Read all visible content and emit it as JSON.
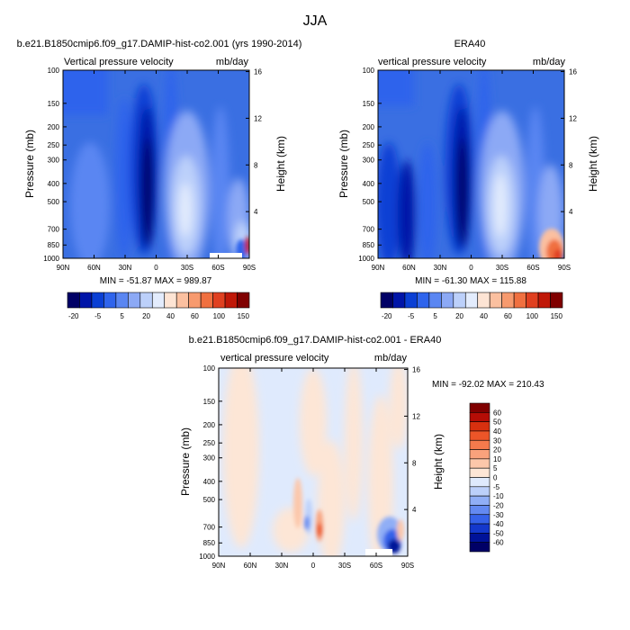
{
  "figure": {
    "season": "JJA"
  },
  "panels": [
    {
      "id": "model",
      "title": "b.e21.B1850cmip6.f09_g17.DAMIP-hist-co2.001 (yrs 1990-2014)",
      "left_label": "Vertical pressure velocity",
      "right_label": "mb/day",
      "stats": "MIN = -51.87  MAX = 989.87"
    },
    {
      "id": "obs",
      "title": "ERA40",
      "left_label": "vertical pressure velocity",
      "right_label": "mb/day",
      "stats": "MIN = -61.30  MAX = 115.88"
    },
    {
      "id": "diff",
      "title": "b.e21.B1850cmip6.f09_g17.DAMIP-hist-co2.001 - ERA40",
      "left_label": "vertical pressure velocity",
      "right_label": "mb/day",
      "stats": "MIN = -92.02  MAX = 210.43"
    }
  ],
  "chart_data": [
    {
      "type": "heatmap",
      "title": "b.e21.B1850cmip6.f09_g17.DAMIP-hist-co2.001 (yrs 1990-2014)",
      "field": "Vertical pressure velocity",
      "units": "mb/day",
      "xlabel": "",
      "ylabel": "Pressure (mb)",
      "y2label": "Height (km)",
      "x_ticks": [
        "90N",
        "60N",
        "30N",
        "0",
        "30S",
        "60S",
        "90S"
      ],
      "y_ticks": [
        100,
        150,
        200,
        250,
        300,
        400,
        500,
        700,
        850,
        1000
      ],
      "y2_ticks": [
        16,
        12,
        8,
        4
      ],
      "y_scale": "log",
      "min": -51.87,
      "max": 989.87,
      "contour_levels": [
        -20,
        -5,
        5,
        20,
        40,
        60,
        100,
        150
      ],
      "features": [
        {
          "name": "strong ascent",
          "lat": "10N",
          "pressure_range": [
            1000,
            170
          ],
          "approx_value": -40
        },
        {
          "name": "subsidence",
          "lat": "15S-25S",
          "pressure_range": [
            1000,
            200
          ],
          "approx_value": 25
        },
        {
          "name": "antarctic surface maximum",
          "lat": "75S-90S",
          "pressure_range": [
            1000,
            800
          ],
          "approx_value": 150
        }
      ]
    },
    {
      "type": "heatmap",
      "title": "ERA40",
      "field": "vertical pressure velocity",
      "units": "mb/day",
      "xlabel": "",
      "ylabel": "Pressure (mb)",
      "y2label": "Height (km)",
      "x_ticks": [
        "90N",
        "60N",
        "30N",
        "0",
        "30S",
        "60S",
        "90S"
      ],
      "y_ticks": [
        100,
        150,
        200,
        250,
        300,
        400,
        500,
        700,
        850,
        1000
      ],
      "y2_ticks": [
        16,
        12,
        8,
        4
      ],
      "y_scale": "log",
      "min": -61.3,
      "max": 115.88,
      "contour_levels": [
        -20,
        -5,
        5,
        20,
        40,
        60,
        100,
        150
      ],
      "features": [
        {
          "name": "strong ascent",
          "lat": "10N",
          "pressure_range": [
            1000,
            170
          ],
          "approx_value": -45
        },
        {
          "name": "subsidence",
          "lat": "15S-25S",
          "pressure_range": [
            1000,
            200
          ],
          "approx_value": 25
        },
        {
          "name": "antarctic surface maximum",
          "lat": "75S-90S",
          "pressure_range": [
            1000,
            750
          ],
          "approx_value": 100
        }
      ]
    },
    {
      "type": "heatmap",
      "title": "b.e21.B1850cmip6.f09_g17.DAMIP-hist-co2.001 - ERA40",
      "field": "vertical pressure velocity",
      "units": "mb/day",
      "xlabel": "",
      "ylabel": "Pressure (mb)",
      "y2label": "Height (km)",
      "x_ticks": [
        "90N",
        "60N",
        "30N",
        "0",
        "30S",
        "60S",
        "90S"
      ],
      "y_ticks": [
        100,
        150,
        200,
        250,
        300,
        400,
        500,
        700,
        850,
        1000
      ],
      "y2_ticks": [
        16,
        12,
        8,
        4
      ],
      "y_scale": "log",
      "min": -92.02,
      "max": 210.43,
      "contour_levels": [
        -60,
        -50,
        -40,
        -30,
        -20,
        -10,
        -5,
        0,
        5,
        10,
        20,
        30,
        40,
        50,
        60
      ],
      "features": [
        {
          "name": "antarctic surface minimum",
          "lat": "75S-85S",
          "pressure_range": [
            1000,
            800
          ],
          "approx_value": -60
        },
        {
          "name": "equatorial dipole",
          "lat": "0-10S",
          "pressure_range": [
            1000,
            400
          ],
          "approx_value": 10
        }
      ]
    }
  ],
  "colorbar_top": {
    "labels": [
      "-20",
      "-5",
      "5",
      "20",
      "40",
      "60",
      "100",
      "150"
    ],
    "colors": [
      "#000066",
      "#0015a8",
      "#0a3fd4",
      "#2f64ec",
      "#5a86f2",
      "#8ca9f5",
      "#bcd0fa",
      "#e3ecfd",
      "#fde4d4",
      "#fbc0a0",
      "#f79a6e",
      "#f07040",
      "#e04020",
      "#c01808",
      "#800000"
    ]
  },
  "colorbar_diff": {
    "labels": [
      "60",
      "50",
      "40",
      "30",
      "20",
      "10",
      "5",
      "0",
      "-5",
      "-10",
      "-20",
      "-30",
      "-40",
      "-50",
      "-60"
    ],
    "colors": [
      "#800000",
      "#b50d06",
      "#d8300f",
      "#ec5528",
      "#f47a4c",
      "#f9a27c",
      "#fcc7aa",
      "#fde6d6",
      "#dfeafd",
      "#bcd0fa",
      "#90aef6",
      "#6389f1",
      "#3662e9",
      "#1438cc",
      "#001299",
      "#000066"
    ]
  },
  "colors": {
    "background_field": "#3a6fe2",
    "diff_positive_light": "#fde6d6",
    "diff_negative_light": "#dfeafd"
  }
}
